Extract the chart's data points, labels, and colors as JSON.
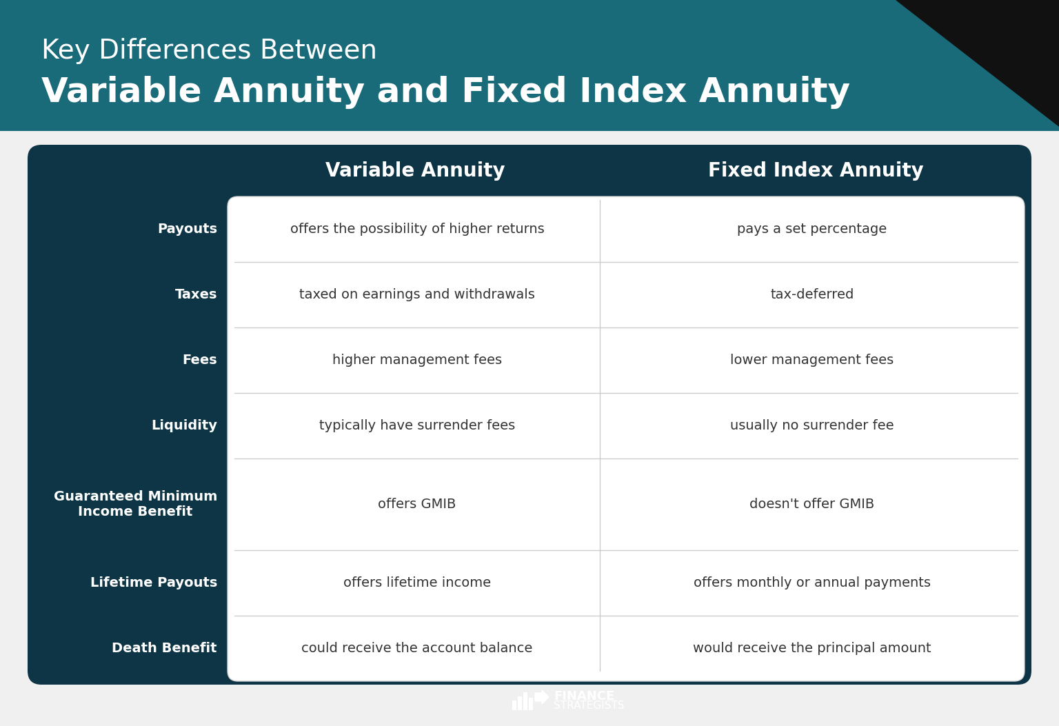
{
  "title_line1": "Key Differences Between",
  "title_line2": "Variable Annuity and Fixed Index Annuity",
  "title_bg_color": "#1a6b7a",
  "table_bg_color": "#0d3545",
  "white_panel_color": "#ffffff",
  "white_panel_border": "#d0d0d0",
  "page_bg_color": "#f0f0f0",
  "header_text_color": "#ffffff",
  "row_label_color": "#ffffff",
  "cell_text_color": "#333333",
  "col_header_1": "Variable Annuity",
  "col_header_2": "Fixed Index Annuity",
  "rows": [
    {
      "label": "Payouts",
      "col1": "offers the possibility of higher returns",
      "col2": "pays a set percentage",
      "multiline": false
    },
    {
      "label": "Taxes",
      "col1": "taxed on earnings and withdrawals",
      "col2": "tax-deferred",
      "multiline": false
    },
    {
      "label": "Fees",
      "col1": "higher management fees",
      "col2": "lower management fees",
      "multiline": false
    },
    {
      "label": "Liquidity",
      "col1": "typically have surrender fees",
      "col2": "usually no surrender fee",
      "multiline": false
    },
    {
      "label": "Guaranteed Minimum\nIncome Benefit",
      "col1": "offers GMIB",
      "col2": "doesn't offer GMIB",
      "multiline": true
    },
    {
      "label": "Lifetime Payouts",
      "col1": "offers lifetime income",
      "col2": "offers monthly or annual payments",
      "multiline": false
    },
    {
      "label": "Death Benefit",
      "col1": "could receive the account balance",
      "col2": "would receive the principal amount",
      "multiline": false
    }
  ],
  "logo_text": "FINANCE\nSTRATEGISTS"
}
